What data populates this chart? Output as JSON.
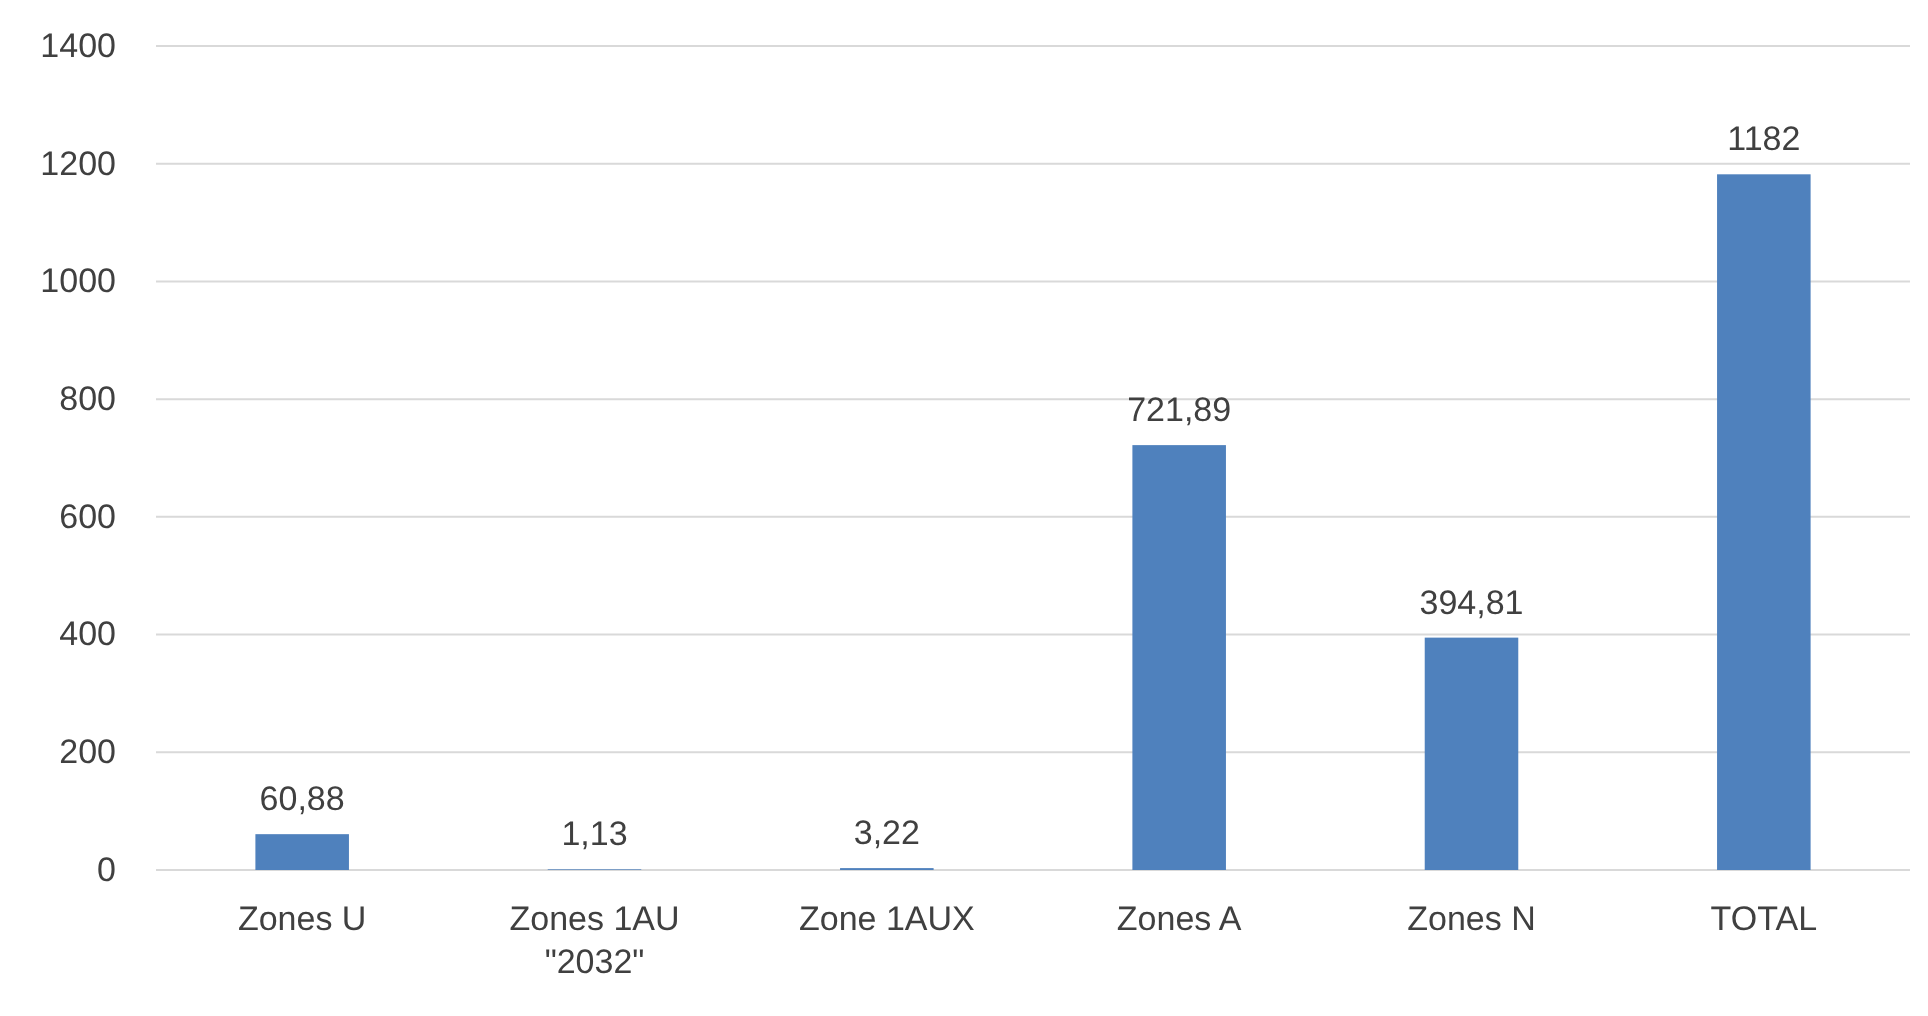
{
  "chart_data": {
    "type": "bar",
    "categories": [
      "Zones U",
      "Zones 1AU \"2032\"",
      "Zone 1AUX",
      "Zones A",
      "Zones N",
      "TOTAL"
    ],
    "values": [
      60.88,
      1.13,
      3.22,
      721.89,
      394.81,
      1182
    ],
    "value_labels": [
      "60,88",
      "1,13",
      "3,22",
      "721,89",
      "394,81",
      "1182"
    ],
    "color": "#4f81bd",
    "ylim": [
      0,
      1400
    ],
    "yticks": [
      0,
      200,
      400,
      600,
      800,
      1000,
      1200,
      1400
    ],
    "grid": "y"
  }
}
